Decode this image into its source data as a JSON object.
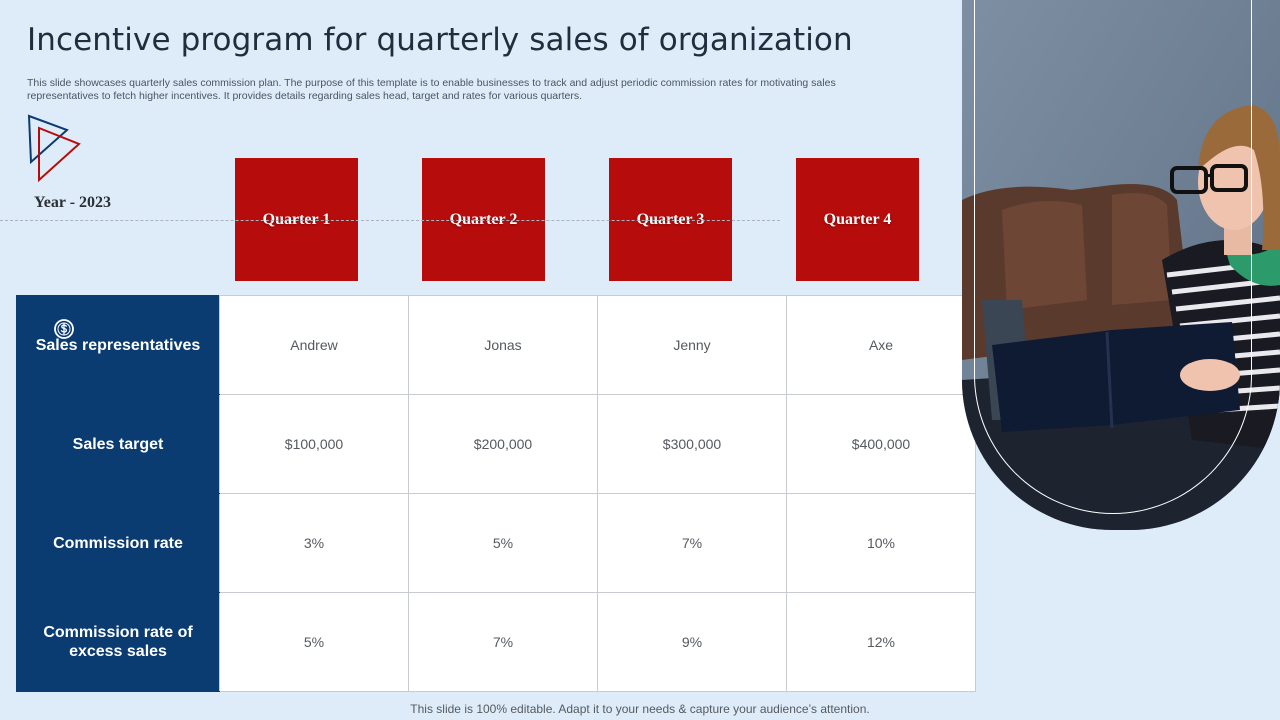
{
  "slide": {
    "title": "Incentive program for quarterly sales of organization",
    "description": "This slide showcases quarterly sales commission plan. The purpose of this template is to enable businesses to track and adjust periodic commission rates for motivating sales representatives to fetch higher incentives. It provides details regarding sales head, target and rates for various quarters.",
    "year_label": "Year - 2023",
    "footer": "This slide is 100% editable. Adapt it to your needs & capture your audience’s attention."
  },
  "quarters": [
    "Quarter 1",
    "Quarter 2",
    "Quarter 3",
    "Quarter 4"
  ],
  "table": {
    "rows": [
      {
        "label": "Sales representatives",
        "values": [
          "Andrew",
          "Jonas",
          "Jenny",
          "Axe"
        ]
      },
      {
        "label": "Sales target",
        "values": [
          "$100,000",
          "$200,000",
          "$300,000",
          "$400,000"
        ]
      },
      {
        "label": "Commission rate",
        "values": [
          "3%",
          "5%",
          "7%",
          "10%"
        ]
      },
      {
        "label": "Commission rate of excess sales",
        "values": [
          "5%",
          "7%",
          "9%",
          "12%"
        ]
      }
    ]
  },
  "colors": {
    "background": "#deecf9",
    "quarter_red": "#b70c0c",
    "header_navy": "#0b3c71"
  },
  "icons": {
    "logo": "triangle-logo-icon",
    "row_icon": "dollar-coin-icon"
  }
}
